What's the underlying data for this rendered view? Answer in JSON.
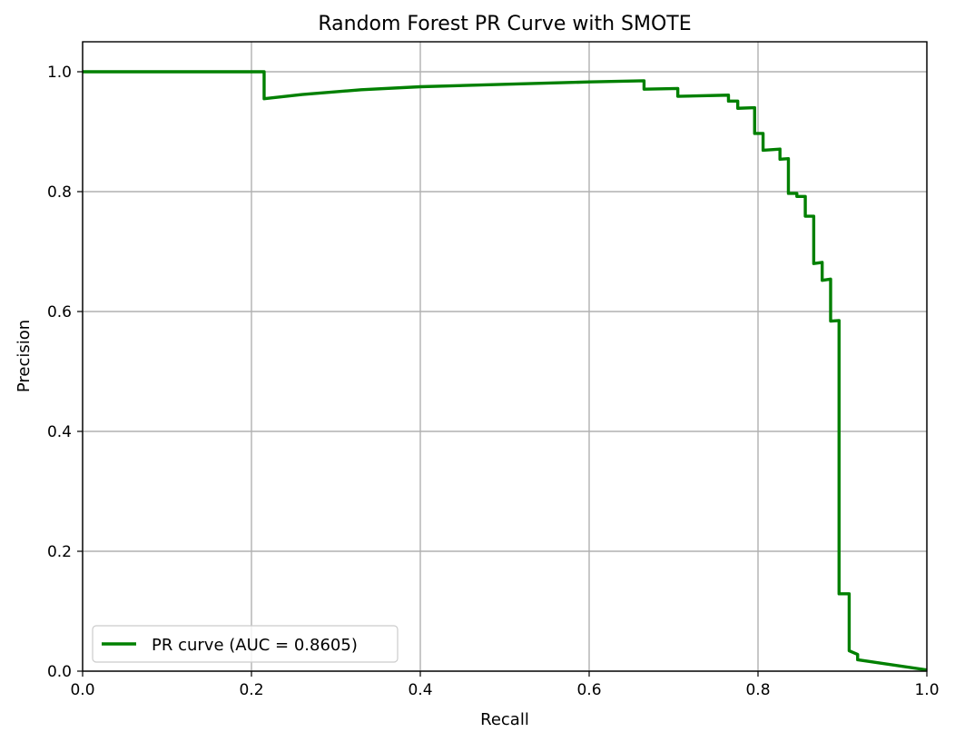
{
  "chart_data": {
    "type": "line",
    "title": "Random Forest PR Curve with SMOTE",
    "xlabel": "Recall",
    "ylabel": "Precision",
    "xlim": [
      0.0,
      1.0
    ],
    "ylim": [
      0.0,
      1.05
    ],
    "xticks": [
      "0.0",
      "0.2",
      "0.4",
      "0.6",
      "0.8",
      "1.0"
    ],
    "yticks": [
      "0.0",
      "0.2",
      "0.4",
      "0.6",
      "0.8",
      "1.0"
    ],
    "grid": true,
    "legend_position": "lower-left",
    "colors": {
      "series": "#008000",
      "grid": "#b0b0b0",
      "axes": "#000000"
    },
    "series": [
      {
        "name": "PR curve (AUC = 0.8605)",
        "points": [
          [
            0.0,
            1.0
          ],
          [
            0.215,
            1.0
          ],
          [
            0.215,
            0.955
          ],
          [
            0.26,
            0.962
          ],
          [
            0.33,
            0.97
          ],
          [
            0.4,
            0.975
          ],
          [
            0.5,
            0.979
          ],
          [
            0.6,
            0.983
          ],
          [
            0.665,
            0.985
          ],
          [
            0.665,
            0.971
          ],
          [
            0.705,
            0.972
          ],
          [
            0.705,
            0.959
          ],
          [
            0.765,
            0.961
          ],
          [
            0.765,
            0.951
          ],
          [
            0.776,
            0.951
          ],
          [
            0.776,
            0.939
          ],
          [
            0.796,
            0.94
          ],
          [
            0.796,
            0.897
          ],
          [
            0.806,
            0.897
          ],
          [
            0.806,
            0.869
          ],
          [
            0.826,
            0.871
          ],
          [
            0.826,
            0.854
          ],
          [
            0.836,
            0.855
          ],
          [
            0.836,
            0.797
          ],
          [
            0.846,
            0.797
          ],
          [
            0.846,
            0.792
          ],
          [
            0.856,
            0.792
          ],
          [
            0.856,
            0.759
          ],
          [
            0.866,
            0.759
          ],
          [
            0.866,
            0.68
          ],
          [
            0.876,
            0.682
          ],
          [
            0.876,
            0.652
          ],
          [
            0.886,
            0.654
          ],
          [
            0.886,
            0.584
          ],
          [
            0.896,
            0.585
          ],
          [
            0.896,
            0.129
          ],
          [
            0.908,
            0.129
          ],
          [
            0.908,
            0.034
          ],
          [
            0.918,
            0.028
          ],
          [
            0.918,
            0.019
          ],
          [
            1.0,
            0.002
          ]
        ]
      }
    ]
  }
}
